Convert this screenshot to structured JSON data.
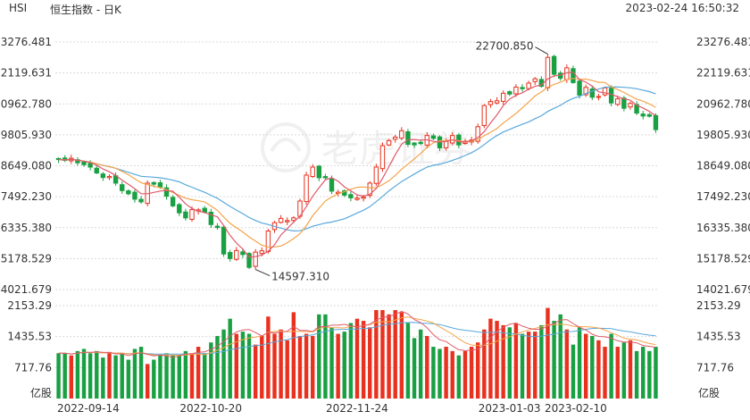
{
  "header": {
    "symbol": "HSI",
    "title": "恒生指数 - 日K",
    "timestamp": "2023-02-24 16:50:32"
  },
  "watermark": {
    "text": "老虎证券"
  },
  "colors": {
    "up": "#e8321f",
    "down": "#19a042",
    "ma5": "#e05a6a",
    "ma10": "#f3a44a",
    "ma20": "#58a8dc",
    "grid": "#d9d9d9"
  },
  "chart_data": [
    {
      "type": "candlestick",
      "title": "恒生指数 - 日K",
      "y_ticks": [
        "23276.481",
        "22119.631",
        "20962.780",
        "19805.930",
        "18649.080",
        "17492.230",
        "16335.380",
        "15178.529",
        "14021.679"
      ],
      "ylim": [
        14021.679,
        23276.481
      ],
      "x_ticks": [
        "2022-09-14",
        "2022-10-20",
        "2022-11-24",
        "2023-01-03",
        "2023-02-10"
      ],
      "annotations": [
        {
          "label": "22700.850",
          "x": "2023-01-27",
          "y": 22700.85
        },
        {
          "label": "14597.310",
          "x": "2022-10-31",
          "y": 14597.31
        }
      ],
      "grid": true,
      "close": [
        18880,
        18850,
        18930,
        18760,
        18690,
        18600,
        18380,
        18210,
        18250,
        18000,
        17720,
        17600,
        17400,
        17300,
        18000,
        17960,
        17860,
        17510,
        17150,
        16890,
        16700,
        17010,
        17000,
        16910,
        16450,
        16340,
        15350,
        15180,
        15480,
        15330,
        14850,
        15420,
        15470,
        16210,
        16520,
        16680,
        16600,
        16700,
        17330,
        18300,
        18600,
        18200,
        18200,
        17700,
        17660,
        17550,
        17450,
        17440,
        17480,
        18000,
        18600,
        19400,
        19590,
        19720,
        19960,
        19450,
        19430,
        19480,
        19780,
        19670,
        19320,
        19560,
        19780,
        19430,
        19570,
        19610,
        20110,
        20900,
        21050,
        21080,
        21360,
        21330,
        21590,
        21530,
        21740,
        21900,
        21620,
        22700,
        22070,
        21920,
        22310,
        21760,
        21290,
        21580,
        21210,
        21240,
        21560,
        21000,
        21150,
        20800,
        20980,
        20620,
        20510,
        20500,
        20000
      ],
      "ma5_from_close": true,
      "ma10_from_close": true,
      "ma20_from_close": true,
      "volume_ticks": [
        "2153.29",
        "1435.53",
        "717.76"
      ],
      "volume_unit": "亿股",
      "volume_ylim": [
        0,
        2153.29
      ],
      "volume": [
        1050,
        1050,
        1000,
        1100,
        1150,
        1050,
        1100,
        950,
        1080,
        1000,
        1050,
        900,
        1150,
        1200,
        800,
        900,
        1000,
        1050,
        1000,
        1000,
        1100,
        1050,
        1200,
        1050,
        1300,
        1450,
        1600,
        1850,
        1500,
        1550,
        1500,
        1250,
        1450,
        1900,
        1500,
        1600,
        1350,
        2000,
        1450,
        1500,
        1450,
        1950,
        1950,
        1650,
        1500,
        1550,
        1750,
        1850,
        1800,
        1650,
        2050,
        2050,
        1950,
        2050,
        2000,
        1750,
        1400,
        1600,
        1450,
        1200,
        1150,
        1200,
        1100,
        1000,
        1100,
        1200,
        1300,
        1600,
        1850,
        1800,
        1700,
        1650,
        1750,
        1500,
        1550,
        1550,
        1700,
        2100,
        1800,
        1950,
        1600,
        1250,
        1650,
        1500,
        1450,
        1350,
        1200,
        1500,
        1200,
        1300,
        1350,
        1100,
        1200,
        1100,
        1200
      ]
    }
  ]
}
